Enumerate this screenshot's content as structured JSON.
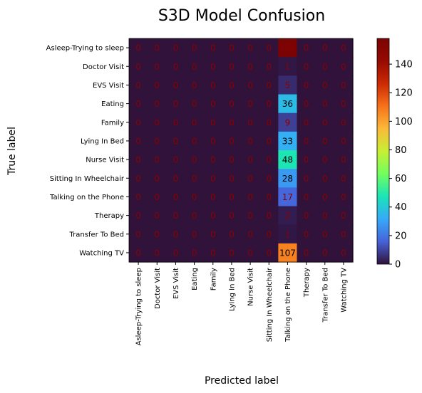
{
  "chart_data": {
    "type": "heatmap",
    "title": "S3D Model Confusion",
    "xlabel": "Predicted label",
    "ylabel": "True label",
    "labels": [
      "Asleep-Trying to sleep",
      "Doctor Visit",
      "EVS Visit",
      "Eating",
      "Family",
      "Lying In Bed",
      "Nurse Visit",
      "Sitting In Wheelchair",
      "Talking on the Phone",
      "Therapy",
      "Transfer To Bed",
      "Watching TV"
    ],
    "matrix": [
      [
        0,
        0,
        0,
        0,
        0,
        0,
        0,
        0,
        158,
        0,
        0,
        0
      ],
      [
        0,
        0,
        0,
        0,
        0,
        0,
        0,
        0,
        1,
        0,
        0,
        0
      ],
      [
        0,
        0,
        0,
        0,
        0,
        0,
        0,
        0,
        5,
        0,
        0,
        0
      ],
      [
        0,
        0,
        0,
        0,
        0,
        0,
        0,
        0,
        36,
        0,
        0,
        0
      ],
      [
        0,
        0,
        0,
        0,
        0,
        0,
        0,
        0,
        9,
        0,
        0,
        0
      ],
      [
        0,
        0,
        0,
        0,
        0,
        0,
        0,
        0,
        33,
        0,
        0,
        0
      ],
      [
        0,
        0,
        0,
        0,
        0,
        0,
        0,
        0,
        48,
        0,
        0,
        0
      ],
      [
        0,
        0,
        0,
        0,
        0,
        0,
        0,
        0,
        28,
        0,
        0,
        0
      ],
      [
        0,
        0,
        0,
        0,
        0,
        0,
        0,
        0,
        17,
        0,
        0,
        0
      ],
      [
        0,
        0,
        0,
        0,
        0,
        0,
        0,
        0,
        2,
        0,
        0,
        0
      ],
      [
        0,
        0,
        0,
        0,
        0,
        0,
        0,
        0,
        1,
        0,
        0,
        0
      ],
      [
        0,
        0,
        0,
        0,
        0,
        0,
        0,
        0,
        107,
        0,
        0,
        0
      ]
    ],
    "colormap": "turbo",
    "vmin": 0,
    "vmax": 158,
    "colorbar_ticks": [
      "0",
      "20",
      "40",
      "60",
      "80",
      "100",
      "120",
      "140"
    ],
    "grid": false
  }
}
